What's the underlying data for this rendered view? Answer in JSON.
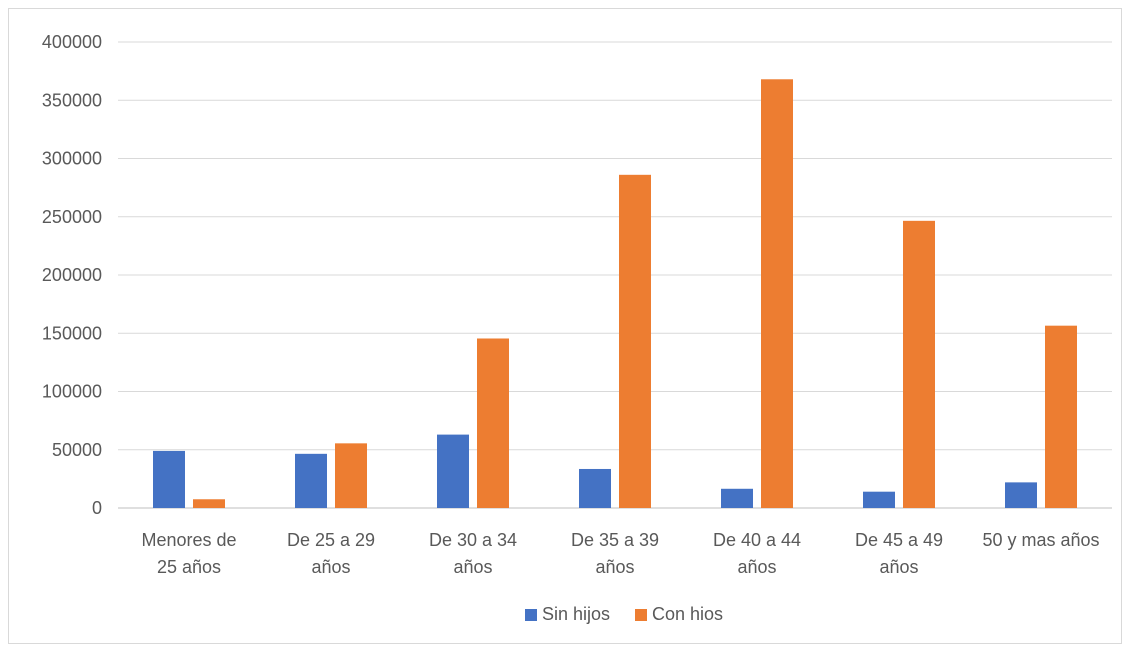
{
  "chart_data": {
    "type": "bar",
    "categories": [
      [
        "Menores de",
        "25 años"
      ],
      [
        "De 25 a 29",
        "años"
      ],
      [
        "De 30 a 34",
        "años"
      ],
      [
        "De 35 a 39",
        "años"
      ],
      [
        "De 40 a 44",
        "años"
      ],
      [
        "De 45 a 49",
        "años"
      ],
      [
        "50 y mas años"
      ]
    ],
    "series": [
      {
        "name": "Sin hijos",
        "color": "#4472c4",
        "values": [
          49000,
          46500,
          63000,
          33500,
          16500,
          14000,
          22000
        ]
      },
      {
        "name": "Con hios",
        "color": "#ed7d31",
        "values": [
          7500,
          55500,
          145500,
          286000,
          368000,
          246500,
          156500
        ]
      }
    ],
    "ylim": [
      0,
      400000
    ],
    "yticks": [
      0,
      50000,
      100000,
      150000,
      200000,
      250000,
      300000,
      350000,
      400000
    ],
    "grid": true,
    "legend": "bottom",
    "title": "",
    "xlabel": "",
    "ylabel": ""
  }
}
